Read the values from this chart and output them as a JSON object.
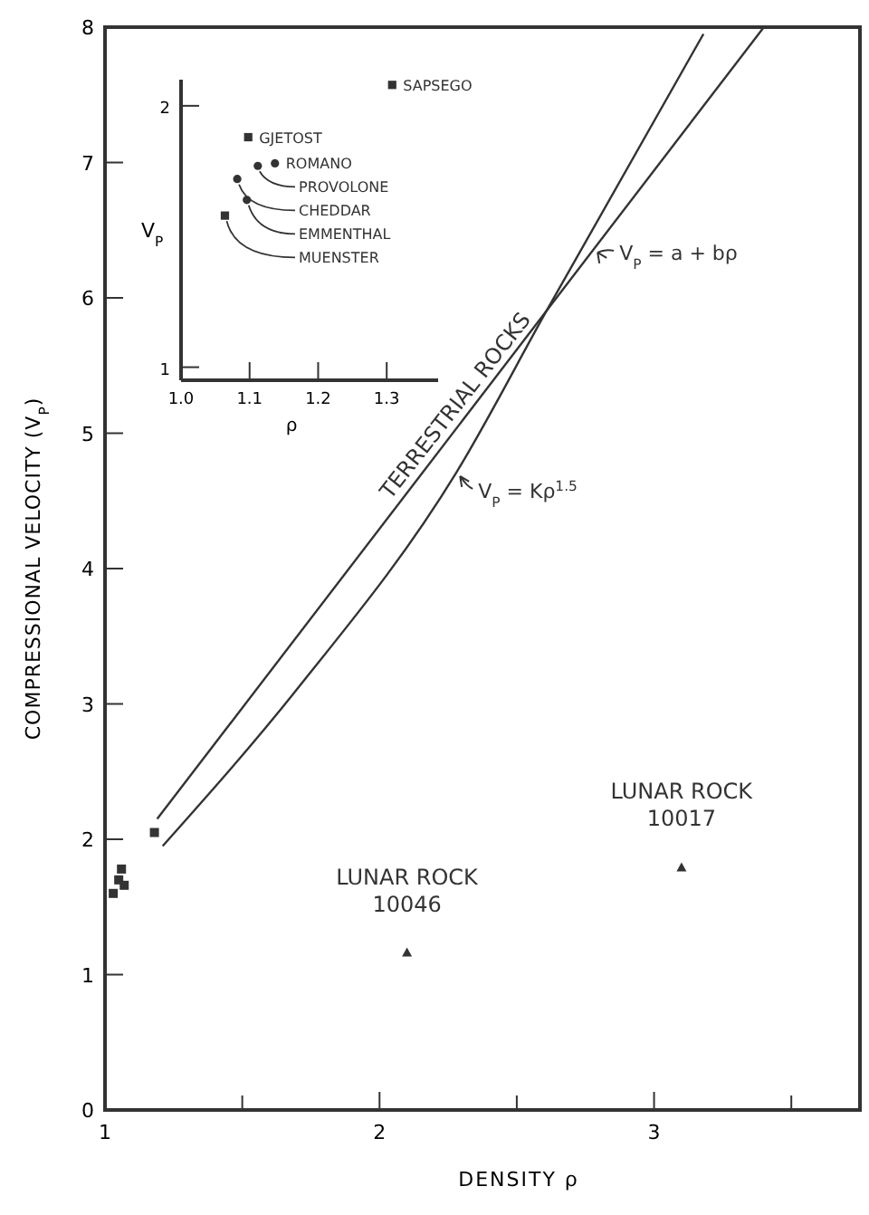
{
  "chart_data": [
    {
      "type": "scatter",
      "xlabel": "DENSITY ρ",
      "ylabel": "COMPRESSIONAL VELOCITY (V$_{P}$)",
      "xlim": [
        1,
        3.75
      ],
      "xticks": [
        1,
        {
          "value": 1.5,
          "label": null
        },
        2,
        {
          "value": 2.5,
          "label": null
        },
        3,
        {
          "value": 3.5,
          "label": null
        }
      ],
      "ylim": [
        0,
        8
      ],
      "yticks": [
        0,
        1,
        2,
        3,
        4,
        5,
        6,
        7,
        8
      ],
      "grid": false,
      "legend": "right",
      "series": [
        {
          "name": "V$_{P}$ = a + bρ",
          "type": "line",
          "color": "#333333",
          "marker": "none",
          "x": [
            1.19,
            3.4
          ],
          "values": [
            2.15,
            8
          ]
        },
        {
          "name": "V$_{P}$ = Kρ$^{1.5}$",
          "type": "line",
          "color": "#333333",
          "marker": "none",
          "x": [
            1.21,
            1.7,
            2.28,
            2.61,
            3.18
          ],
          "values": [
            1.95,
            3.11,
            4.71,
            5.91,
            7.95
          ]
        },
        {
          "type": "scatter",
          "color": "#333333",
          "marker": "square",
          "x": [
            1.03,
            1.05,
            1.06,
            1.07,
            1.18
          ],
          "values": [
            1.6,
            1.7,
            1.78,
            1.66,
            2.05
          ]
        },
        {
          "type": "scatter",
          "color": "#333333",
          "marker": "triangle",
          "x": [
            2.1,
            3.1
          ],
          "values": [
            1.16,
            1.79
          ]
        }
      ],
      "annotations": [
        {
          "text": "LUNAR ROCK 10046",
          "x": 2.1,
          "y": 1.16
        },
        {
          "text": "LUNAR ROCK 10017",
          "x": 3.1,
          "y": 1.79
        },
        {
          "text": "TERRESTRIAL ROCKS",
          "x": 2.38,
          "y": 5.04
        }
      ]
    },
    {
      "type": "scatter",
      "xlabel": "ρ",
      "ylabel": "V$_{P}$",
      "xlim": [
        1.0,
        1.375
      ],
      "xticks": [
        {
          "value": 1.0,
          "label": "1.0"
        },
        {
          "value": 1.1,
          "label": "1.1"
        },
        {
          "value": 1.2,
          "label": "1.2"
        },
        {
          "value": 1.3,
          "label": "1.3"
        }
      ],
      "ylim": [
        0.95,
        2.1
      ],
      "yticks": [
        1,
        2
      ],
      "grid": false,
      "series": [
        {
          "type": "scatter",
          "color": "#333333",
          "marker": "square",
          "x": [
            1.308,
            1.098,
            1.064
          ],
          "values": [
            2.08,
            1.88,
            1.58
          ]
        },
        {
          "type": "scatter",
          "color": "#333333",
          "marker": "circle",
          "x": [
            1.137,
            1.112,
            1.082,
            1.096
          ],
          "values": [
            1.78,
            1.77,
            1.72,
            1.64
          ]
        }
      ],
      "annotations": [
        {
          "text": "SAPSEGO",
          "x": 1.308,
          "y": 2.08
        },
        {
          "text": "GJETOST",
          "x": 1.098,
          "y": 1.88
        },
        {
          "text": "ROMANO",
          "x": 1.137,
          "y": 1.78
        },
        {
          "text": "PROVOLONE",
          "x": 1.112,
          "y": 1.77
        },
        {
          "text": "CHEDDAR",
          "x": 1.082,
          "y": 1.72
        },
        {
          "text": "EMMENTHAL",
          "x": 1.096,
          "y": 1.64
        },
        {
          "text": "MUENSTER",
          "x": 1.064,
          "y": 1.58
        }
      ]
    }
  ]
}
